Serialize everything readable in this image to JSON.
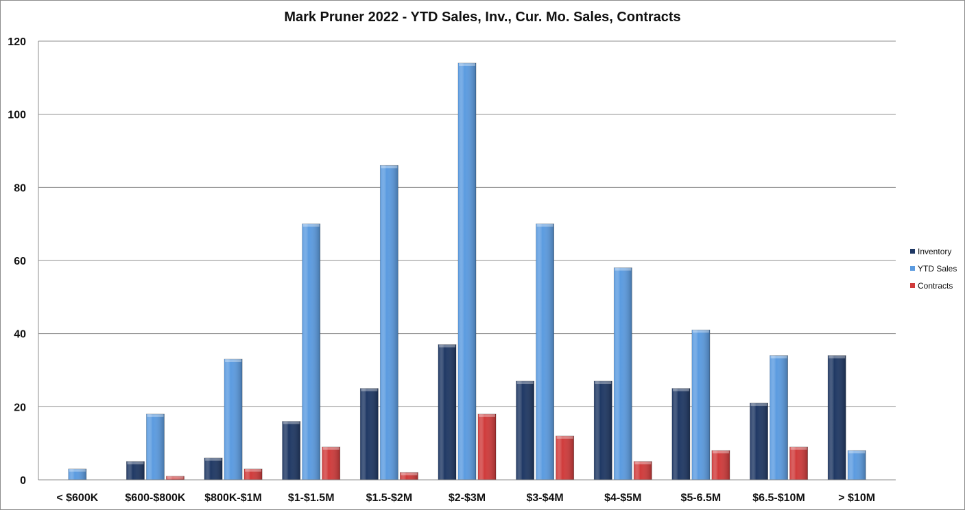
{
  "chart_data": {
    "type": "bar",
    "title": "Mark Pruner 2022 - YTD Sales, Inv., Cur. Mo. Sales, Contracts",
    "xlabel": "",
    "ylabel": "",
    "ylim": [
      0,
      120
    ],
    "yticks": [
      0,
      20,
      40,
      60,
      80,
      100,
      120
    ],
    "grid": true,
    "legend_position": "right",
    "categories": [
      "< $600K",
      "$600-$800K",
      "$800K-$1M",
      "$1-$1.5M",
      "$1.5-$2M",
      "$2-$3M",
      "$3-$4M",
      "$4-$5M",
      "$5-6.5M",
      "$6.5-$10M",
      "> $10M"
    ],
    "series": [
      {
        "name": "Inventory",
        "color": "#1f3864",
        "values": [
          0,
          5,
          6,
          16,
          25,
          37,
          27,
          27,
          25,
          21,
          34
        ]
      },
      {
        "name": "YTD Sales",
        "color": "#5b9be0",
        "values": [
          3,
          18,
          33,
          70,
          86,
          114,
          70,
          58,
          41,
          34,
          8
        ]
      },
      {
        "name": "Contracts",
        "color": "#d03b3b",
        "values": [
          0,
          1,
          3,
          9,
          2,
          18,
          12,
          5,
          8,
          9,
          0
        ]
      }
    ]
  }
}
